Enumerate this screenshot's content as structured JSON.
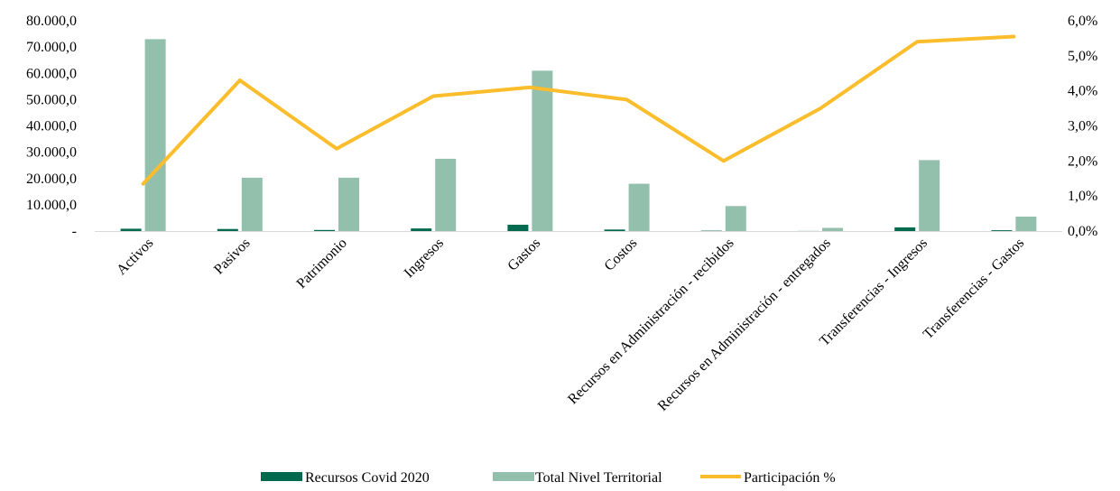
{
  "chart_data": {
    "type": "bar",
    "categories": [
      "Activos",
      "Pasivos",
      "Patrimonio",
      "Ingresos",
      "Gastos",
      "Costos",
      "Recursos en Administración - recibidos",
      "Recursos en Administración - entregados",
      "Transferencias - Ingresos",
      "Transferencias - Gastos"
    ],
    "series": [
      {
        "name": "Recursos Covid 2020",
        "type": "bar",
        "axis": "left",
        "color": "#006a4e",
        "values": [
          900,
          800,
          400,
          1000,
          2400,
          600,
          150,
          40,
          1400,
          300
        ]
      },
      {
        "name": "Total Nivel Territorial",
        "type": "bar",
        "axis": "left",
        "color": "#93bfad",
        "values": [
          73000,
          20300,
          20300,
          27500,
          61000,
          18000,
          9500,
          1200,
          27000,
          5500
        ]
      },
      {
        "name": "Participación %",
        "type": "line",
        "axis": "right",
        "color": "#fbbd2b",
        "values": [
          1.35,
          4.3,
          2.35,
          3.85,
          4.1,
          3.75,
          2.0,
          3.5,
          5.4,
          5.55
        ]
      }
    ],
    "y_left": {
      "min": 0,
      "max": 80000,
      "tick_labels": [
        "-",
        "10.000,0",
        "20.000,0",
        "30.000,0",
        "40.000,0",
        "50.000,0",
        "60.000,0",
        "70.000,0",
        "80.000,0"
      ]
    },
    "y_right": {
      "min": 0,
      "max": 6,
      "tick_labels": [
        "0,0%",
        "1,0%",
        "2,0%",
        "3,0%",
        "4,0%",
        "5,0%",
        "6,0%"
      ]
    },
    "grid": false,
    "legend_position": "bottom",
    "title": "",
    "xlabel": "",
    "ylabel": ""
  }
}
